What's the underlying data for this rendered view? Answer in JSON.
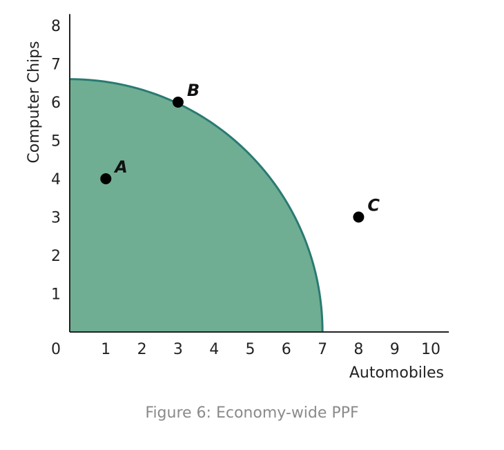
{
  "chart_data": {
    "type": "area",
    "xlabel": "Automobiles",
    "ylabel": "Computer Chips",
    "xlim": [
      0,
      10.5
    ],
    "ylim": [
      0,
      8.3
    ],
    "origin_label": "0",
    "x_ticks": [
      "1",
      "2",
      "3",
      "4",
      "5",
      "6",
      "7",
      "8",
      "9",
      "10"
    ],
    "y_ticks": [
      "1",
      "2",
      "3",
      "4",
      "5",
      "6",
      "7",
      "8"
    ],
    "grid": false,
    "ppf": {
      "x_intercept": 7,
      "y_intercept": 6.6,
      "fill_color": "#6fae93",
      "line_color": "#2a7a72"
    },
    "points": [
      {
        "label": "A",
        "x": 1,
        "y": 4
      },
      {
        "label": "B",
        "x": 3,
        "y": 6
      },
      {
        "label": "C",
        "x": 8,
        "y": 3
      }
    ]
  },
  "caption": "Figure 6: Economy-wide PPF"
}
